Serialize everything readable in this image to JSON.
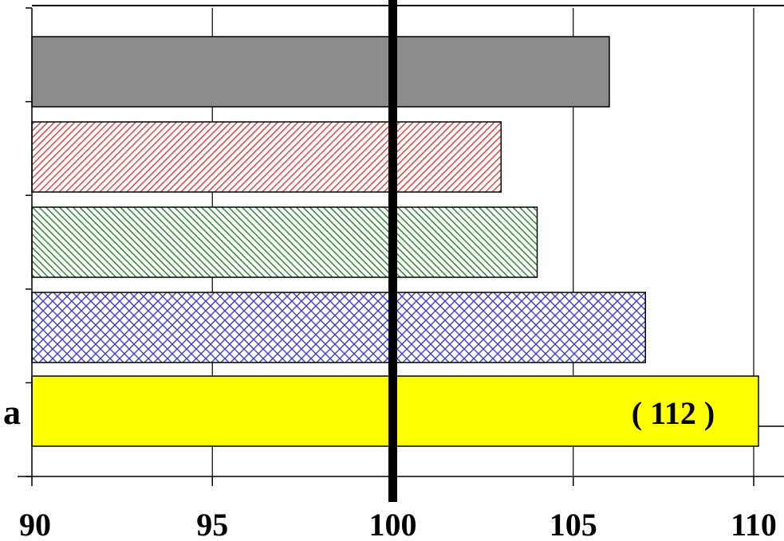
{
  "chart_data": {
    "type": "bar",
    "orientation": "horizontal",
    "xlim": [
      90,
      110
    ],
    "x_ticks": [
      "90",
      "95",
      "100",
      "105",
      "110"
    ],
    "reference_line": 100,
    "grid": true,
    "categories": [
      "",
      "",
      "",
      "",
      "a"
    ],
    "values": [
      106,
      103,
      104,
      107,
      112
    ],
    "data_labels": [
      "",
      "",
      "",
      "",
      "( 112 )"
    ],
    "bar_styles": [
      {
        "fill": "#8c8c8c",
        "pattern": "solid"
      },
      {
        "fill": "#e8463c",
        "pattern": "diagonal-stripes"
      },
      {
        "fill": "#2e8b2e",
        "pattern": "diagonal-stripes-reverse"
      },
      {
        "fill": "#3c3cd2",
        "pattern": "crosshatch"
      },
      {
        "fill": "#ffff00",
        "pattern": "solid"
      }
    ]
  }
}
